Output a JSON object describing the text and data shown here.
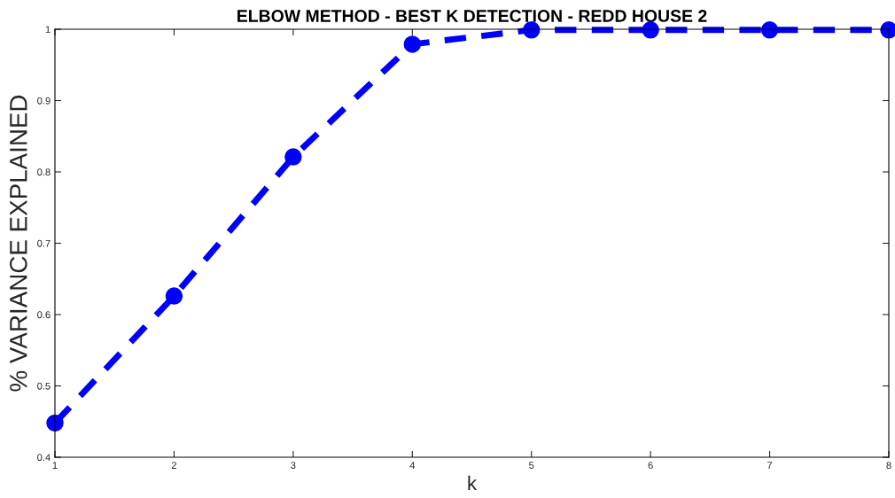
{
  "chart_data": {
    "type": "line",
    "title": "ELBOW METHOD - BEST K DETECTION - REDD HOUSE 2",
    "xlabel": "k",
    "ylabel": "% VARIANCE EXPLAINED",
    "x": [
      1,
      2,
      3,
      4,
      5,
      6,
      7,
      8
    ],
    "series": [
      {
        "color": "#0000ff",
        "values": [
          0.448,
          0.626,
          0.821,
          0.979,
          0.999,
          0.999,
          0.999,
          0.999
        ]
      }
    ],
    "xlim": [
      1,
      8
    ],
    "xticks": [
      1,
      2,
      3,
      4,
      5,
      6,
      7,
      8
    ],
    "ylim": [
      0.4,
      1
    ],
    "yticks": [
      0.4,
      0.5,
      0.6,
      0.7,
      0.8,
      0.9,
      1
    ],
    "grid": false,
    "legend": false,
    "marker": "circle",
    "line_style": "dashed"
  }
}
